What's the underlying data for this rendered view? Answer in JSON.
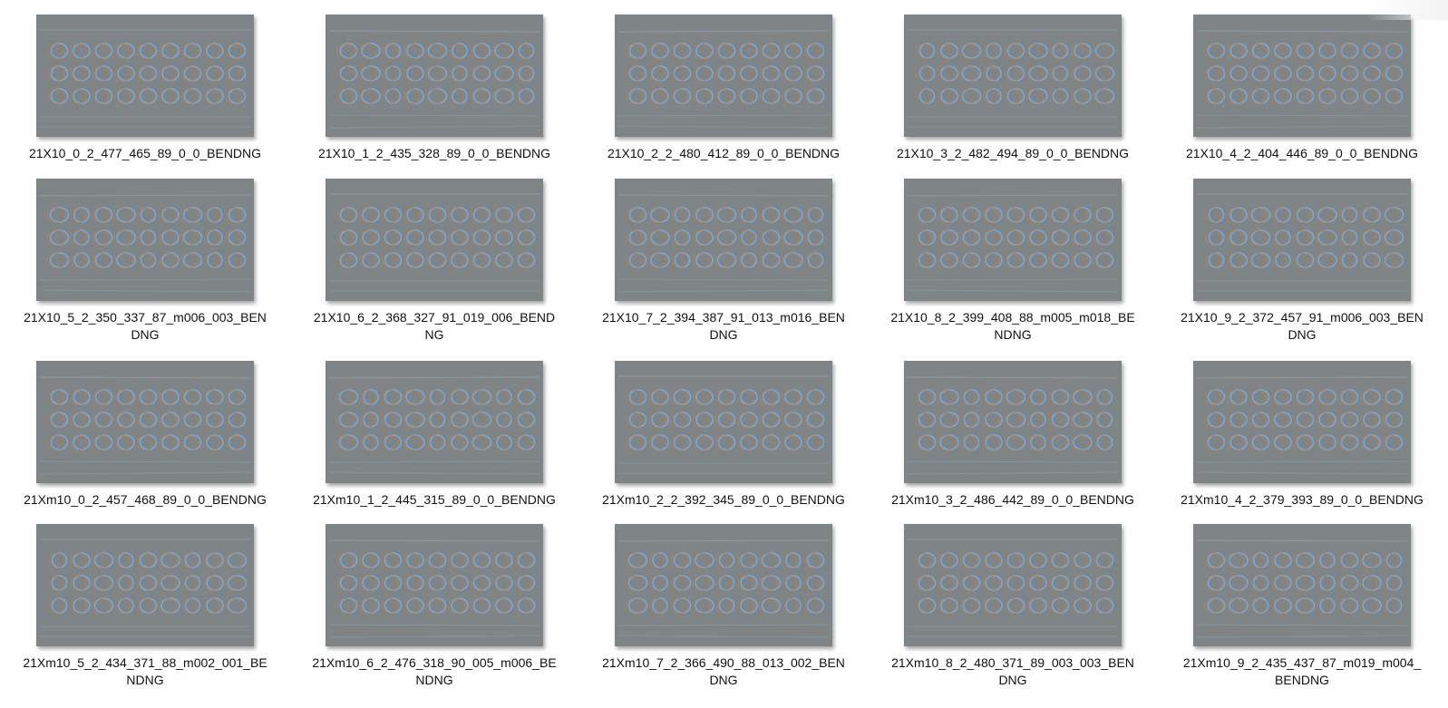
{
  "files": [
    {
      "name": "21X10_0_2_477_465_89_0_0_BENDNG",
      "icon": "image-thumbnail-icon"
    },
    {
      "name": "21X10_1_2_435_328_89_0_0_BENDNG",
      "icon": "image-thumbnail-icon"
    },
    {
      "name": "21X10_2_2_480_412_89_0_0_BENDNG",
      "icon": "image-thumbnail-icon"
    },
    {
      "name": "21X10_3_2_482_494_89_0_0_BENDNG",
      "icon": "image-thumbnail-icon"
    },
    {
      "name": "21X10_4_2_404_446_89_0_0_BENDNG",
      "icon": "image-thumbnail-icon"
    },
    {
      "name": "21X10_5_2_350_337_87_m006_003_BENDNG",
      "icon": "image-thumbnail-icon"
    },
    {
      "name": "21X10_6_2_368_327_91_019_006_BENDNG",
      "icon": "image-thumbnail-icon"
    },
    {
      "name": "21X10_7_2_394_387_91_013_m016_BENDNG",
      "icon": "image-thumbnail-icon"
    },
    {
      "name": "21X10_8_2_399_408_88_m005_m018_BENDNG",
      "icon": "image-thumbnail-icon"
    },
    {
      "name": "21X10_9_2_372_457_91_m006_003_BENDNG",
      "icon": "image-thumbnail-icon"
    },
    {
      "name": "21Xm10_0_2_457_468_89_0_0_BENDNG",
      "icon": "image-thumbnail-icon"
    },
    {
      "name": "21Xm10_1_2_445_315_89_0_0_BENDNG",
      "icon": "image-thumbnail-icon"
    },
    {
      "name": "21Xm10_2_2_392_345_89_0_0_BENDNG",
      "icon": "image-thumbnail-icon"
    },
    {
      "name": "21Xm10_3_2_486_442_89_0_0_BENDNG",
      "icon": "image-thumbnail-icon"
    },
    {
      "name": "21Xm10_4_2_379_393_89_0_0_BENDNG",
      "icon": "image-thumbnail-icon"
    },
    {
      "name": "21Xm10_5_2_434_371_88_m002_001_BENDNG",
      "icon": "image-thumbnail-icon"
    },
    {
      "name": "21Xm10_6_2_476_318_90_005_m006_BENDNG",
      "icon": "image-thumbnail-icon"
    },
    {
      "name": "21Xm10_7_2_366_490_88_013_002_BENDNG",
      "icon": "image-thumbnail-icon"
    },
    {
      "name": "21Xm10_8_2_480_371_89_003_003_BENDNG",
      "icon": "image-thumbnail-icon"
    },
    {
      "name": "21Xm10_9_2_435_437_87_m019_m004_BENDNG",
      "icon": "image-thumbnail-icon"
    }
  ],
  "colors": {
    "thumbnail_background": "#7f8587",
    "hole_highlight_blue": "#6fb6ff",
    "hole_shadow_orange": "#c8793a"
  }
}
